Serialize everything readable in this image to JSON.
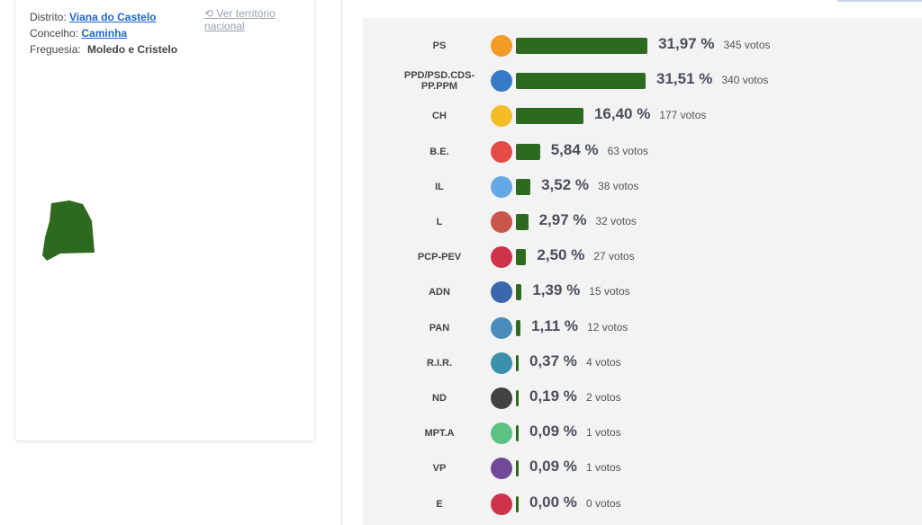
{
  "location": {
    "district_label": "Distrito:",
    "district": "Viana do Castelo",
    "national_link": "Ver território nacional",
    "municipality_label": "Concelho:",
    "municipality": "Caminha",
    "parish_label": "Freguesia:",
    "parish": "Moledo e Cristelo"
  },
  "chart_data": {
    "type": "bar",
    "orientation": "horizontal",
    "color": "#2d6a1f",
    "categories": [
      "PS",
      "PPD/PSD.CDS-PP.PPM",
      "CH",
      "B.E.",
      "IL",
      "L",
      "PCP-PEV",
      "ADN",
      "PAN",
      "R.I.R.",
      "ND",
      "MPT.A",
      "VP",
      "E"
    ],
    "values": [
      31.97,
      31.51,
      16.4,
      5.84,
      3.52,
      2.97,
      2.5,
      1.39,
      1.11,
      0.37,
      0.19,
      0.09,
      0.09,
      0.0
    ],
    "value_labels": [
      "31,97 %",
      "31,51 %",
      "16,40 %",
      "5,84 %",
      "3,52 %",
      "2,97 %",
      "2,50 %",
      "1,39 %",
      "1,11 %",
      "0,37 %",
      "0,19 %",
      "0,09 %",
      "0,09 %",
      "0,00 %"
    ],
    "vote_labels": [
      "345 votos",
      "340 votos",
      "177 votos",
      "63 votos",
      "38 votos",
      "32 votos",
      "27 votos",
      "15 votos",
      "12 votos",
      "4 votos",
      "2 votos",
      "1 votos",
      "1 votos",
      "0 votos"
    ]
  }
}
